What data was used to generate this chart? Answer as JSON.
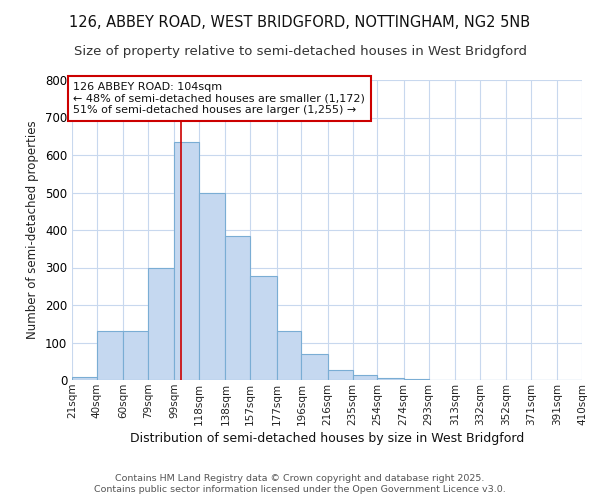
{
  "title1": "126, ABBEY ROAD, WEST BRIDGFORD, NOTTINGHAM, NG2 5NB",
  "title2": "Size of property relative to semi-detached houses in West Bridgford",
  "xlabel": "Distribution of semi-detached houses by size in West Bridgford",
  "ylabel": "Number of semi-detached properties",
  "bin_labels": [
    "21sqm",
    "40sqm",
    "60sqm",
    "79sqm",
    "99sqm",
    "118sqm",
    "138sqm",
    "157sqm",
    "177sqm",
    "196sqm",
    "216sqm",
    "235sqm",
    "254sqm",
    "274sqm",
    "293sqm",
    "313sqm",
    "332sqm",
    "352sqm",
    "371sqm",
    "391sqm",
    "410sqm"
  ],
  "bin_edges": [
    21,
    40,
    60,
    79,
    99,
    118,
    138,
    157,
    177,
    196,
    216,
    235,
    254,
    274,
    293,
    313,
    332,
    352,
    371,
    391,
    410
  ],
  "bar_heights": [
    8,
    130,
    130,
    300,
    635,
    500,
    385,
    278,
    130,
    70,
    28,
    13,
    5,
    3,
    1,
    0,
    0,
    0,
    0,
    0
  ],
  "bar_color": "#c5d8f0",
  "bar_edge_color": "#7aadd4",
  "property_size": 104,
  "red_line_color": "#cc0000",
  "annotation_text1": "126 ABBEY ROAD: 104sqm",
  "annotation_text2": "← 48% of semi-detached houses are smaller (1,172)",
  "annotation_text3": "51% of semi-detached houses are larger (1,255) →",
  "ylim": [
    0,
    800
  ],
  "yticks": [
    0,
    100,
    200,
    300,
    400,
    500,
    600,
    700,
    800
  ],
  "footer1": "Contains HM Land Registry data © Crown copyright and database right 2025.",
  "footer2": "Contains public sector information licensed under the Open Government Licence v3.0.",
  "bg_color": "#ffffff",
  "plot_bg_color": "#ffffff",
  "grid_color": "#c8d8ee",
  "title_fontsize": 10.5,
  "subtitle_fontsize": 9.5,
  "annotation_box_color": "#ffffff",
  "annotation_box_edge": "#cc0000"
}
